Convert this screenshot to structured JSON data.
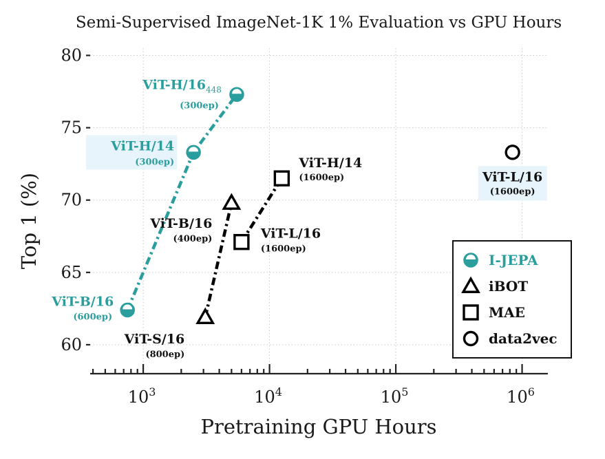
{
  "chart_data": {
    "type": "scatter",
    "title": "Semi-Supervised ImageNet-1K 1% Evaluation vs GPU Hours",
    "xlabel": "Pretraining GPU Hours",
    "ylabel": "Top 1 (%)",
    "xscale": "log",
    "xlim": [
      380,
      1600000
    ],
    "ylim": [
      58,
      80.5
    ],
    "y_ticks": [
      "60",
      "65",
      "70",
      "75",
      "80"
    ],
    "x_ticks": [
      {
        "value": 1000,
        "base": "10",
        "exp": "3"
      },
      {
        "value": 10000,
        "base": "10",
        "exp": "4"
      },
      {
        "value": 100000,
        "base": "10",
        "exp": "5"
      },
      {
        "value": 1000000,
        "base": "10",
        "exp": "6"
      }
    ],
    "grid": true,
    "legend_position": "bottom-right",
    "series": [
      {
        "name": "I-JEPA",
        "marker": "half-circle",
        "color": "#2a9d9d",
        "points": [
          {
            "x": 750,
            "y": 62.4,
            "label": "ViT-B/16",
            "sub": "(600ep)"
          },
          {
            "x": 2500,
            "y": 73.3,
            "label": "ViT-H/14",
            "sub": "(300ep)"
          },
          {
            "x": 5500,
            "y": 77.3,
            "label": "ViT-H/16",
            "label_suffix": "448",
            "sub": "(300ep)"
          }
        ]
      },
      {
        "name": "iBOT",
        "marker": "triangle",
        "color": "#000000",
        "points": [
          {
            "x": 3100,
            "y": 61.9,
            "label": "ViT-S/16",
            "sub": "(800ep)"
          },
          {
            "x": 5000,
            "y": 69.8,
            "label": "ViT-B/16",
            "sub": "(400ep)"
          }
        ]
      },
      {
        "name": "MAE",
        "marker": "square",
        "color": "#000000",
        "points": [
          {
            "x": 6000,
            "y": 67.1,
            "label": "ViT-L/16",
            "sub": "(1600ep)"
          },
          {
            "x": 12500,
            "y": 71.5,
            "label": "ViT-H/14",
            "sub": "(1600ep)"
          }
        ]
      },
      {
        "name": "data2vec",
        "marker": "circle",
        "color": "#000000",
        "points": [
          {
            "x": 840000,
            "y": 73.3,
            "label": "ViT-L/16",
            "sub": "(1600ep)"
          }
        ]
      }
    ]
  }
}
